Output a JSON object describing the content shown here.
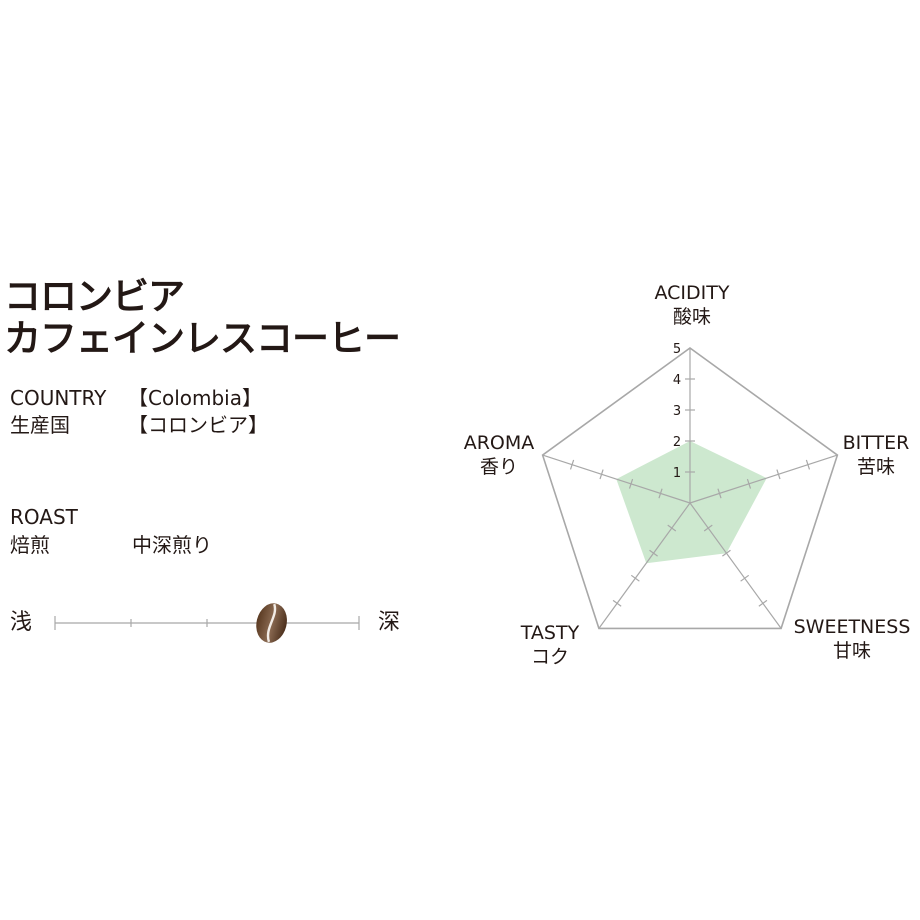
{
  "product": {
    "title_line1": "コロンビア",
    "title_line2": "カフェインレスコーヒー"
  },
  "country": {
    "label_en": "COUNTRY",
    "value_en": "【Colombia】",
    "label_jp": "生産国",
    "value_jp": "【コロンビア】"
  },
  "roast": {
    "label_en": "ROAST",
    "label_jp": "焙煎",
    "value": "中深煎り",
    "scale_left": "浅",
    "scale_right": "深",
    "scale_steps": 5,
    "level": 3.85,
    "icon": "coffee-bean-icon"
  },
  "chart_data": {
    "type": "radar",
    "rmax": 5,
    "ticks": [
      "1",
      "2",
      "3",
      "4",
      "5"
    ],
    "axes": [
      {
        "key": "acidity",
        "en": "ACIDITY",
        "jp": "酸味",
        "value": 2
      },
      {
        "key": "bitter",
        "en": "BITTER",
        "jp": "苦味",
        "value": 2.6
      },
      {
        "key": "sweetness",
        "en": "SWEETNESS",
        "jp": "甘味",
        "value": 2
      },
      {
        "key": "tasty",
        "en": "TASTY",
        "jp": "コク",
        "value": 2.4
      },
      {
        "key": "aroma",
        "en": "AROMA",
        "jp": "香り",
        "value": 2.5
      }
    ],
    "fill_color": "#cde8cf",
    "grid_color": "#a8a8a8"
  }
}
